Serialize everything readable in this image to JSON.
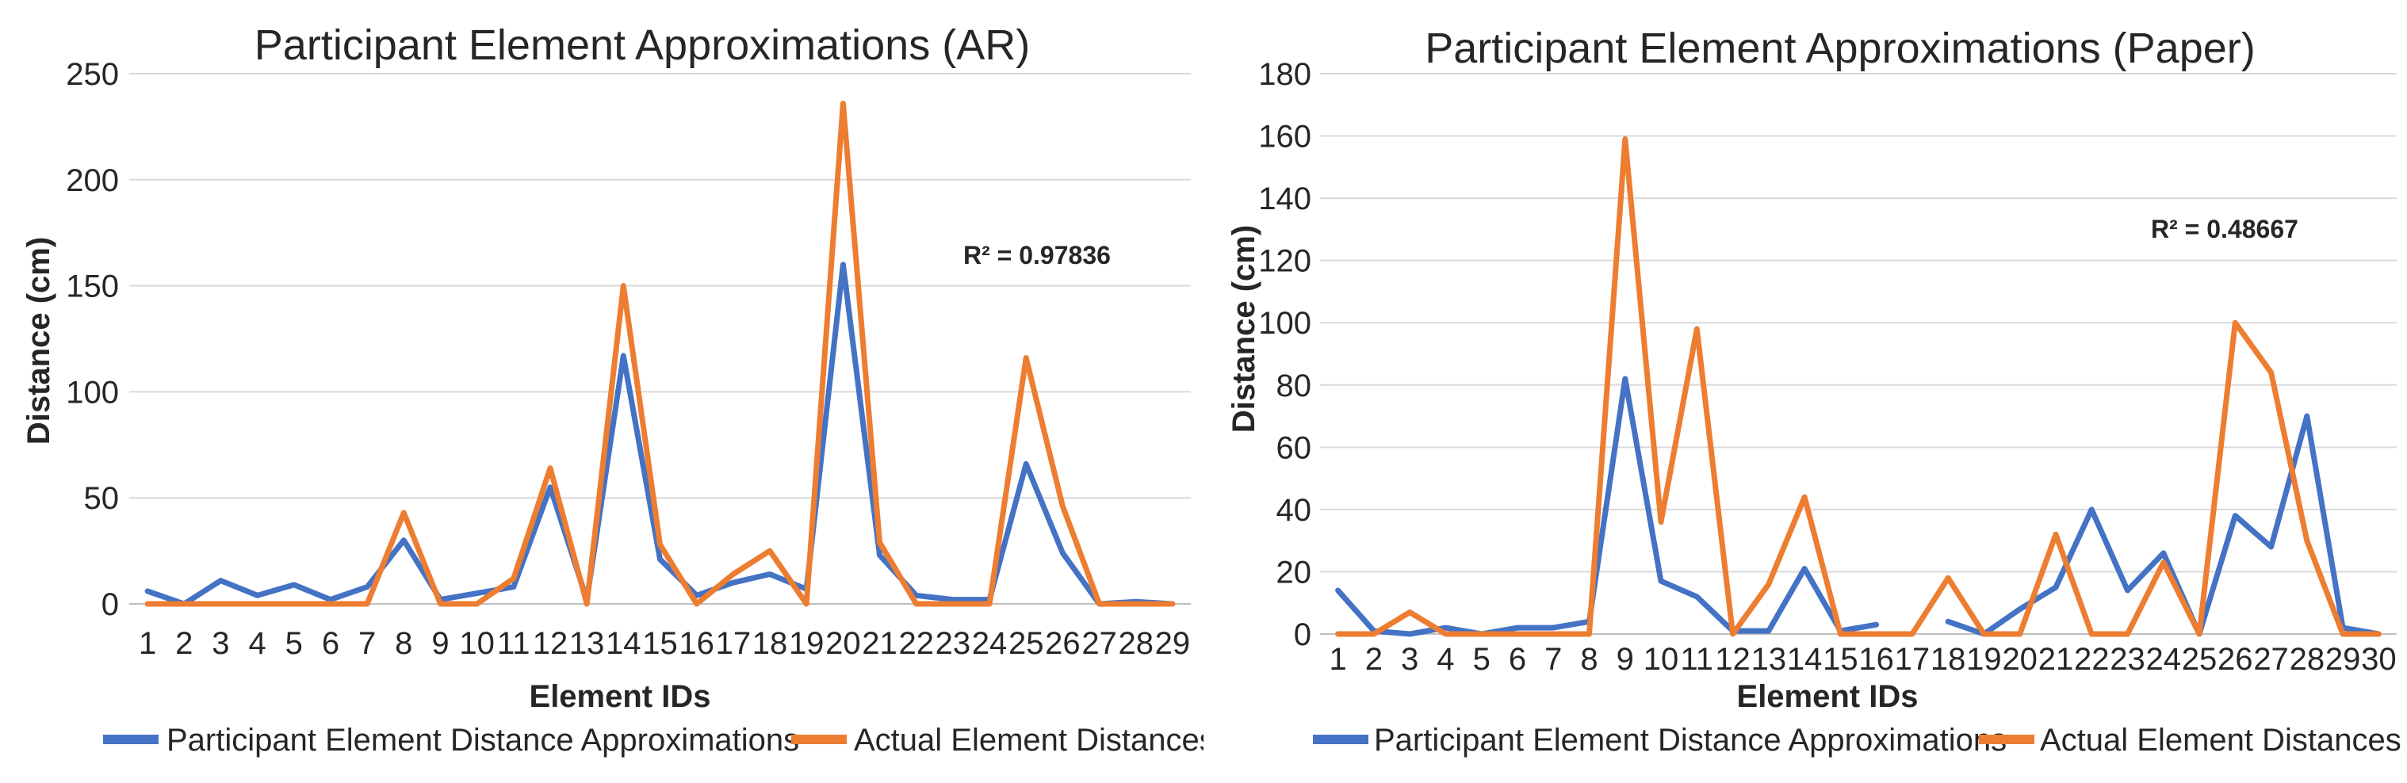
{
  "colors": {
    "participant": "#4472C4",
    "actual": "#ED7D31"
  },
  "chart_data": [
    {
      "type": "line",
      "title": "Participant Element Approximations (AR)",
      "xlabel": "Element IDs",
      "ylabel": "Distance (cm)",
      "ylim": [
        0,
        250
      ],
      "yticks": [
        0,
        50,
        100,
        150,
        200,
        250
      ],
      "grid": true,
      "legend_position": "bottom",
      "annotation": "R² = 0.97836",
      "categories": [
        "1",
        "2",
        "3",
        "4",
        "5",
        "6",
        "7",
        "8",
        "9",
        "10",
        "11",
        "12",
        "13",
        "14",
        "15",
        "16",
        "17",
        "18",
        "19",
        "20",
        "21",
        "22",
        "23",
        "24",
        "25",
        "26",
        "27",
        "28",
        "29"
      ],
      "series": [
        {
          "name": "Participant Element Distance Approximations",
          "color": "#4472C4",
          "values": [
            6,
            0,
            11,
            4,
            9,
            2,
            8,
            30,
            2,
            5,
            8,
            55,
            2,
            117,
            21,
            4,
            10,
            14,
            7,
            160,
            23,
            4,
            2,
            2,
            66,
            24,
            0,
            1,
            0
          ]
        },
        {
          "name": "Actual Element Distances",
          "color": "#ED7D31",
          "values": [
            0,
            0,
            0,
            0,
            0,
            0,
            0,
            43,
            0,
            0,
            12,
            64,
            0,
            150,
            28,
            0,
            14,
            25,
            0,
            236,
            29,
            0,
            0,
            0,
            116,
            46,
            0,
            0,
            0
          ]
        }
      ]
    },
    {
      "type": "line",
      "title": "Participant Element Approximations (Paper)",
      "xlabel": "Element IDs",
      "ylabel": "Distance (cm)",
      "ylim": [
        0,
        180
      ],
      "yticks": [
        0,
        20,
        40,
        60,
        80,
        100,
        120,
        140,
        160,
        180
      ],
      "grid": true,
      "legend_position": "bottom",
      "annotation": "R² = 0.48667",
      "categories": [
        "1",
        "2",
        "3",
        "4",
        "5",
        "6",
        "7",
        "8",
        "9",
        "10",
        "11",
        "12",
        "13",
        "14",
        "15",
        "16",
        "17",
        "18",
        "19",
        "20",
        "21",
        "22",
        "23",
        "24",
        "25",
        "26",
        "27",
        "28",
        "29",
        "30"
      ],
      "series": [
        {
          "name": "Participant Element Distance Approximations",
          "color": "#4472C4",
          "values": [
            14,
            1,
            0,
            2,
            0,
            2,
            2,
            4,
            82,
            17,
            12,
            1,
            1,
            21,
            1,
            3,
            null,
            4,
            0,
            8,
            15,
            40,
            14,
            26,
            0,
            38,
            28,
            70,
            2,
            0
          ]
        },
        {
          "name": "Actual Element Distances",
          "color": "#ED7D31",
          "values": [
            0,
            0,
            7,
            0,
            0,
            0,
            0,
            0,
            159,
            36,
            98,
            0,
            16,
            44,
            0,
            0,
            0,
            18,
            0,
            0,
            32,
            0,
            0,
            23,
            0,
            100,
            84,
            30,
            0,
            0
          ]
        }
      ]
    }
  ]
}
